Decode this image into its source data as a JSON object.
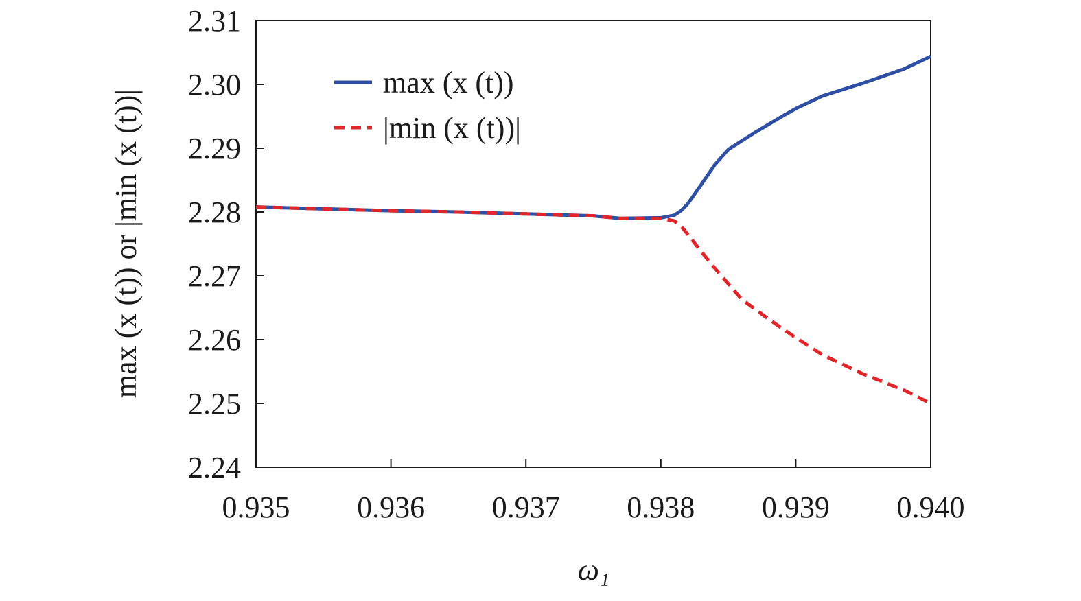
{
  "chart_data": {
    "type": "line",
    "title": "",
    "xlabel": "ω₁",
    "ylabel": "max (x (t)) or |min (x (t))|",
    "xlim": [
      0.935,
      0.94
    ],
    "ylim": [
      2.24,
      2.31
    ],
    "xticks": [
      "0.935",
      "0.936",
      "0.937",
      "0.938",
      "0.939",
      "0.940"
    ],
    "yticks": [
      "2.24",
      "2.25",
      "2.26",
      "2.27",
      "2.28",
      "2.29",
      "2.30",
      "2.31"
    ],
    "grid": false,
    "legend_position": "top-left",
    "series": [
      {
        "name": "max (x (t))",
        "color": "#2E4FA3",
        "style": "solid",
        "x": [
          0.935,
          0.9355,
          0.936,
          0.9365,
          0.937,
          0.9375,
          0.9377,
          0.938,
          0.9381,
          0.93815,
          0.9382,
          0.9383,
          0.9384,
          0.9385,
          0.9387,
          0.9389,
          0.939,
          0.9392,
          0.9395,
          0.9398,
          0.94
        ],
        "y": [
          2.2808,
          2.2805,
          2.2802,
          2.28,
          2.2797,
          2.2794,
          2.279,
          2.2791,
          2.2795,
          2.2802,
          2.2813,
          2.2843,
          2.2874,
          2.2898,
          2.2925,
          2.295,
          2.2962,
          2.2982,
          2.3002,
          2.3024,
          2.3044
        ]
      },
      {
        "name": "|min (x (t))|",
        "color": "#E0262B",
        "style": "dashed",
        "x": [
          0.935,
          0.9355,
          0.936,
          0.9365,
          0.937,
          0.9375,
          0.9377,
          0.938,
          0.9381,
          0.93815,
          0.9382,
          0.9383,
          0.9384,
          0.9386,
          0.9388,
          0.939,
          0.9392,
          0.9395,
          0.9398,
          0.94
        ],
        "y": [
          2.2808,
          2.2805,
          2.2802,
          2.28,
          2.2797,
          2.2794,
          2.279,
          2.279,
          2.2786,
          2.2778,
          2.2765,
          2.2738,
          2.2712,
          2.2663,
          2.2632,
          2.2603,
          2.2576,
          2.2546,
          2.2521,
          2.25
        ]
      }
    ]
  }
}
